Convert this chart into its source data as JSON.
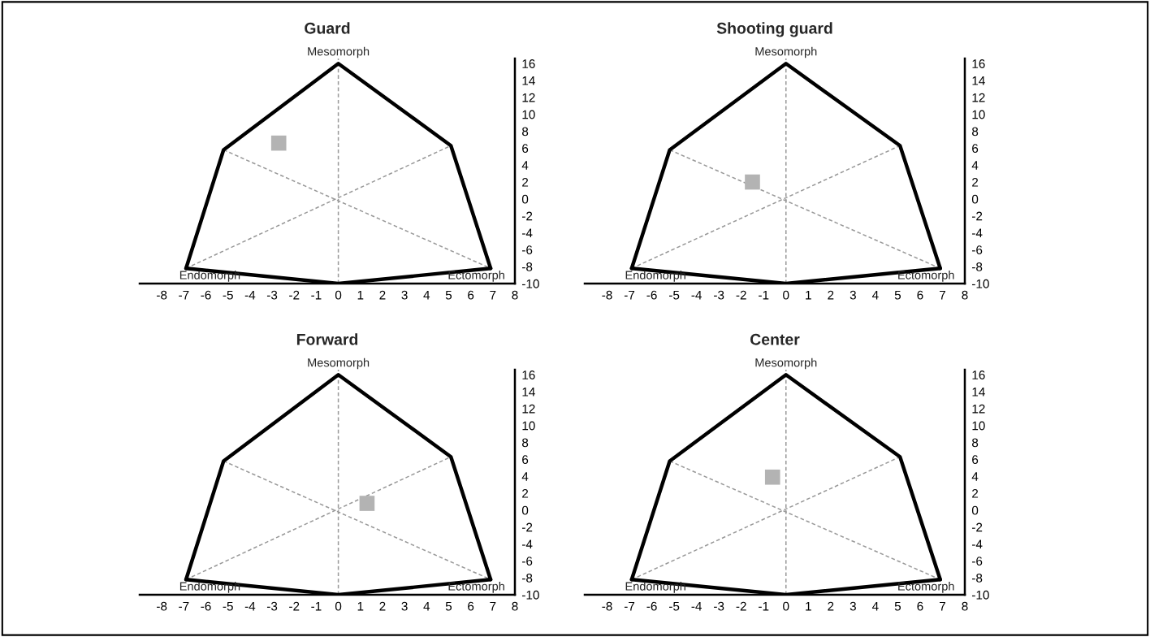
{
  "chart_data": [
    {
      "type": "scatter",
      "title": "Guard",
      "ref_lines": [
        {
          "axis": "x",
          "value": 0,
          "color": "#999999",
          "line_style": "dashed"
        }
      ],
      "xlim": [
        -9,
        8
      ],
      "ylim": [
        -10,
        16.6
      ],
      "xticks": [
        -8,
        -7,
        -6,
        -5,
        -4,
        -3,
        -2,
        -1,
        0,
        1,
        2,
        3,
        4,
        5,
        6,
        7,
        8
      ],
      "yticks": [
        -10,
        -8,
        -6,
        -4,
        -2,
        0,
        2,
        4,
        6,
        8,
        10,
        12,
        14,
        16
      ],
      "annotations": [
        {
          "text": "Mesomorph",
          "x": 0,
          "y": 16
        },
        {
          "text": "Endomorph",
          "x": -6.9,
          "y": -8.2
        },
        {
          "text": "Ectomorph",
          "x": 6.9,
          "y": -8.2
        }
      ],
      "series": [
        {
          "type": "line",
          "color": "#000000",
          "x": [
            -6.9,
            -5.2,
            0,
            5.1,
            6.9
          ],
          "values": [
            -8.2,
            5.8,
            16,
            6.3,
            -8.2
          ]
        },
        {
          "type": "line",
          "color": "#000000",
          "x": [
            -6.9,
            0,
            6.9
          ],
          "values": [
            -8.2,
            -10,
            -8.2
          ]
        },
        {
          "type": "line",
          "color": "#999999",
          "line_style": "dashed",
          "x": [
            -5.2,
            6.9
          ],
          "values": [
            5.8,
            -8.2
          ]
        },
        {
          "type": "line",
          "color": "#999999",
          "line_style": "dashed",
          "x": [
            -6.9,
            5.1
          ],
          "values": [
            -8.2,
            6.3
          ]
        },
        {
          "type": "scatter",
          "color": "#b3b3b3",
          "marker": "square",
          "x": [
            -2.7
          ],
          "values": [
            6.6
          ]
        }
      ]
    },
    {
      "type": "scatter",
      "title": "Shooting guard",
      "ref_lines": [
        {
          "axis": "x",
          "value": 0,
          "color": "#999999",
          "line_style": "dashed"
        }
      ],
      "xlim": [
        -9,
        8
      ],
      "ylim": [
        -10,
        16.6
      ],
      "xticks": [
        -8,
        -7,
        -6,
        -5,
        -4,
        -3,
        -2,
        -1,
        0,
        1,
        2,
        3,
        4,
        5,
        6,
        7,
        8
      ],
      "yticks": [
        -10,
        -8,
        -6,
        -4,
        -2,
        0,
        2,
        4,
        6,
        8,
        10,
        12,
        14,
        16
      ],
      "annotations": [
        {
          "text": "Mesomorph",
          "x": 0,
          "y": 16
        },
        {
          "text": "Endomorph",
          "x": -6.9,
          "y": -8.2
        },
        {
          "text": "Ectomorph",
          "x": 6.9,
          "y": -8.2
        }
      ],
      "series": [
        {
          "type": "line",
          "color": "#000000",
          "x": [
            -6.9,
            -5.2,
            0,
            5.1,
            6.9
          ],
          "values": [
            -8.2,
            5.8,
            16,
            6.3,
            -8.2
          ]
        },
        {
          "type": "line",
          "color": "#000000",
          "x": [
            -6.9,
            0,
            6.9
          ],
          "values": [
            -8.2,
            -10,
            -8.2
          ]
        },
        {
          "type": "line",
          "color": "#999999",
          "line_style": "dashed",
          "x": [
            -5.2,
            6.9
          ],
          "values": [
            5.8,
            -8.2
          ]
        },
        {
          "type": "line",
          "color": "#999999",
          "line_style": "dashed",
          "x": [
            -6.9,
            5.1
          ],
          "values": [
            -8.2,
            6.3
          ]
        },
        {
          "type": "scatter",
          "color": "#b3b3b3",
          "marker": "square",
          "x": [
            -1.5
          ],
          "values": [
            2
          ]
        }
      ]
    },
    {
      "type": "scatter",
      "title": "Forward",
      "ref_lines": [
        {
          "axis": "x",
          "value": 0,
          "color": "#999999",
          "line_style": "dashed"
        }
      ],
      "xlim": [
        -9,
        8
      ],
      "ylim": [
        -10,
        16.6
      ],
      "xticks": [
        -8,
        -7,
        -6,
        -5,
        -4,
        -3,
        -2,
        -1,
        0,
        1,
        2,
        3,
        4,
        5,
        6,
        7,
        8
      ],
      "yticks": [
        -10,
        -8,
        -6,
        -4,
        -2,
        0,
        2,
        4,
        6,
        8,
        10,
        12,
        14,
        16
      ],
      "annotations": [
        {
          "text": "Mesomorph",
          "x": 0,
          "y": 16
        },
        {
          "text": "Endomorph",
          "x": -6.9,
          "y": -8.2
        },
        {
          "text": "Ectomorph",
          "x": 6.9,
          "y": -8.2
        }
      ],
      "series": [
        {
          "type": "line",
          "color": "#000000",
          "x": [
            -6.9,
            -5.2,
            0,
            5.1,
            6.9
          ],
          "values": [
            -8.2,
            5.8,
            16,
            6.3,
            -8.2
          ]
        },
        {
          "type": "line",
          "color": "#000000",
          "x": [
            -6.9,
            0,
            6.9
          ],
          "values": [
            -8.2,
            -10,
            -8.2
          ]
        },
        {
          "type": "line",
          "color": "#999999",
          "line_style": "dashed",
          "x": [
            -5.2,
            6.9
          ],
          "values": [
            5.8,
            -8.2
          ]
        },
        {
          "type": "line",
          "color": "#999999",
          "line_style": "dashed",
          "x": [
            -6.9,
            5.1
          ],
          "values": [
            -8.2,
            6.3
          ]
        },
        {
          "type": "scatter",
          "color": "#b3b3b3",
          "marker": "square",
          "x": [
            1.3
          ],
          "values": [
            0.8
          ]
        }
      ]
    },
    {
      "type": "scatter",
      "title": "Center",
      "ref_lines": [
        {
          "axis": "x",
          "value": 0,
          "color": "#999999",
          "line_style": "dashed"
        }
      ],
      "xlim": [
        -9,
        8
      ],
      "ylim": [
        -10,
        16.6
      ],
      "xticks": [
        -8,
        -7,
        -6,
        -5,
        -4,
        -3,
        -2,
        -1,
        0,
        1,
        2,
        3,
        4,
        5,
        6,
        7,
        8
      ],
      "yticks": [
        -10,
        -8,
        -6,
        -4,
        -2,
        0,
        2,
        4,
        6,
        8,
        10,
        12,
        14,
        16
      ],
      "annotations": [
        {
          "text": "Mesomorph",
          "x": 0,
          "y": 16
        },
        {
          "text": "Endomorph",
          "x": -6.9,
          "y": -8.2
        },
        {
          "text": "Ectomorph",
          "x": 6.9,
          "y": -8.2
        }
      ],
      "series": [
        {
          "type": "line",
          "color": "#000000",
          "x": [
            -6.9,
            -5.2,
            0,
            5.1,
            6.9
          ],
          "values": [
            -8.2,
            5.8,
            16,
            6.3,
            -8.2
          ]
        },
        {
          "type": "line",
          "color": "#000000",
          "x": [
            -6.9,
            0,
            6.9
          ],
          "values": [
            -8.2,
            -10,
            -8.2
          ]
        },
        {
          "type": "line",
          "color": "#999999",
          "line_style": "dashed",
          "x": [
            -5.2,
            6.9
          ],
          "values": [
            5.8,
            -8.2
          ]
        },
        {
          "type": "line",
          "color": "#999999",
          "line_style": "dashed",
          "x": [
            -6.9,
            5.1
          ],
          "values": [
            -8.2,
            6.3
          ]
        },
        {
          "type": "scatter",
          "color": "#b3b3b3",
          "marker": "square",
          "x": [
            -0.6
          ],
          "values": [
            3.9
          ]
        }
      ]
    }
  ]
}
